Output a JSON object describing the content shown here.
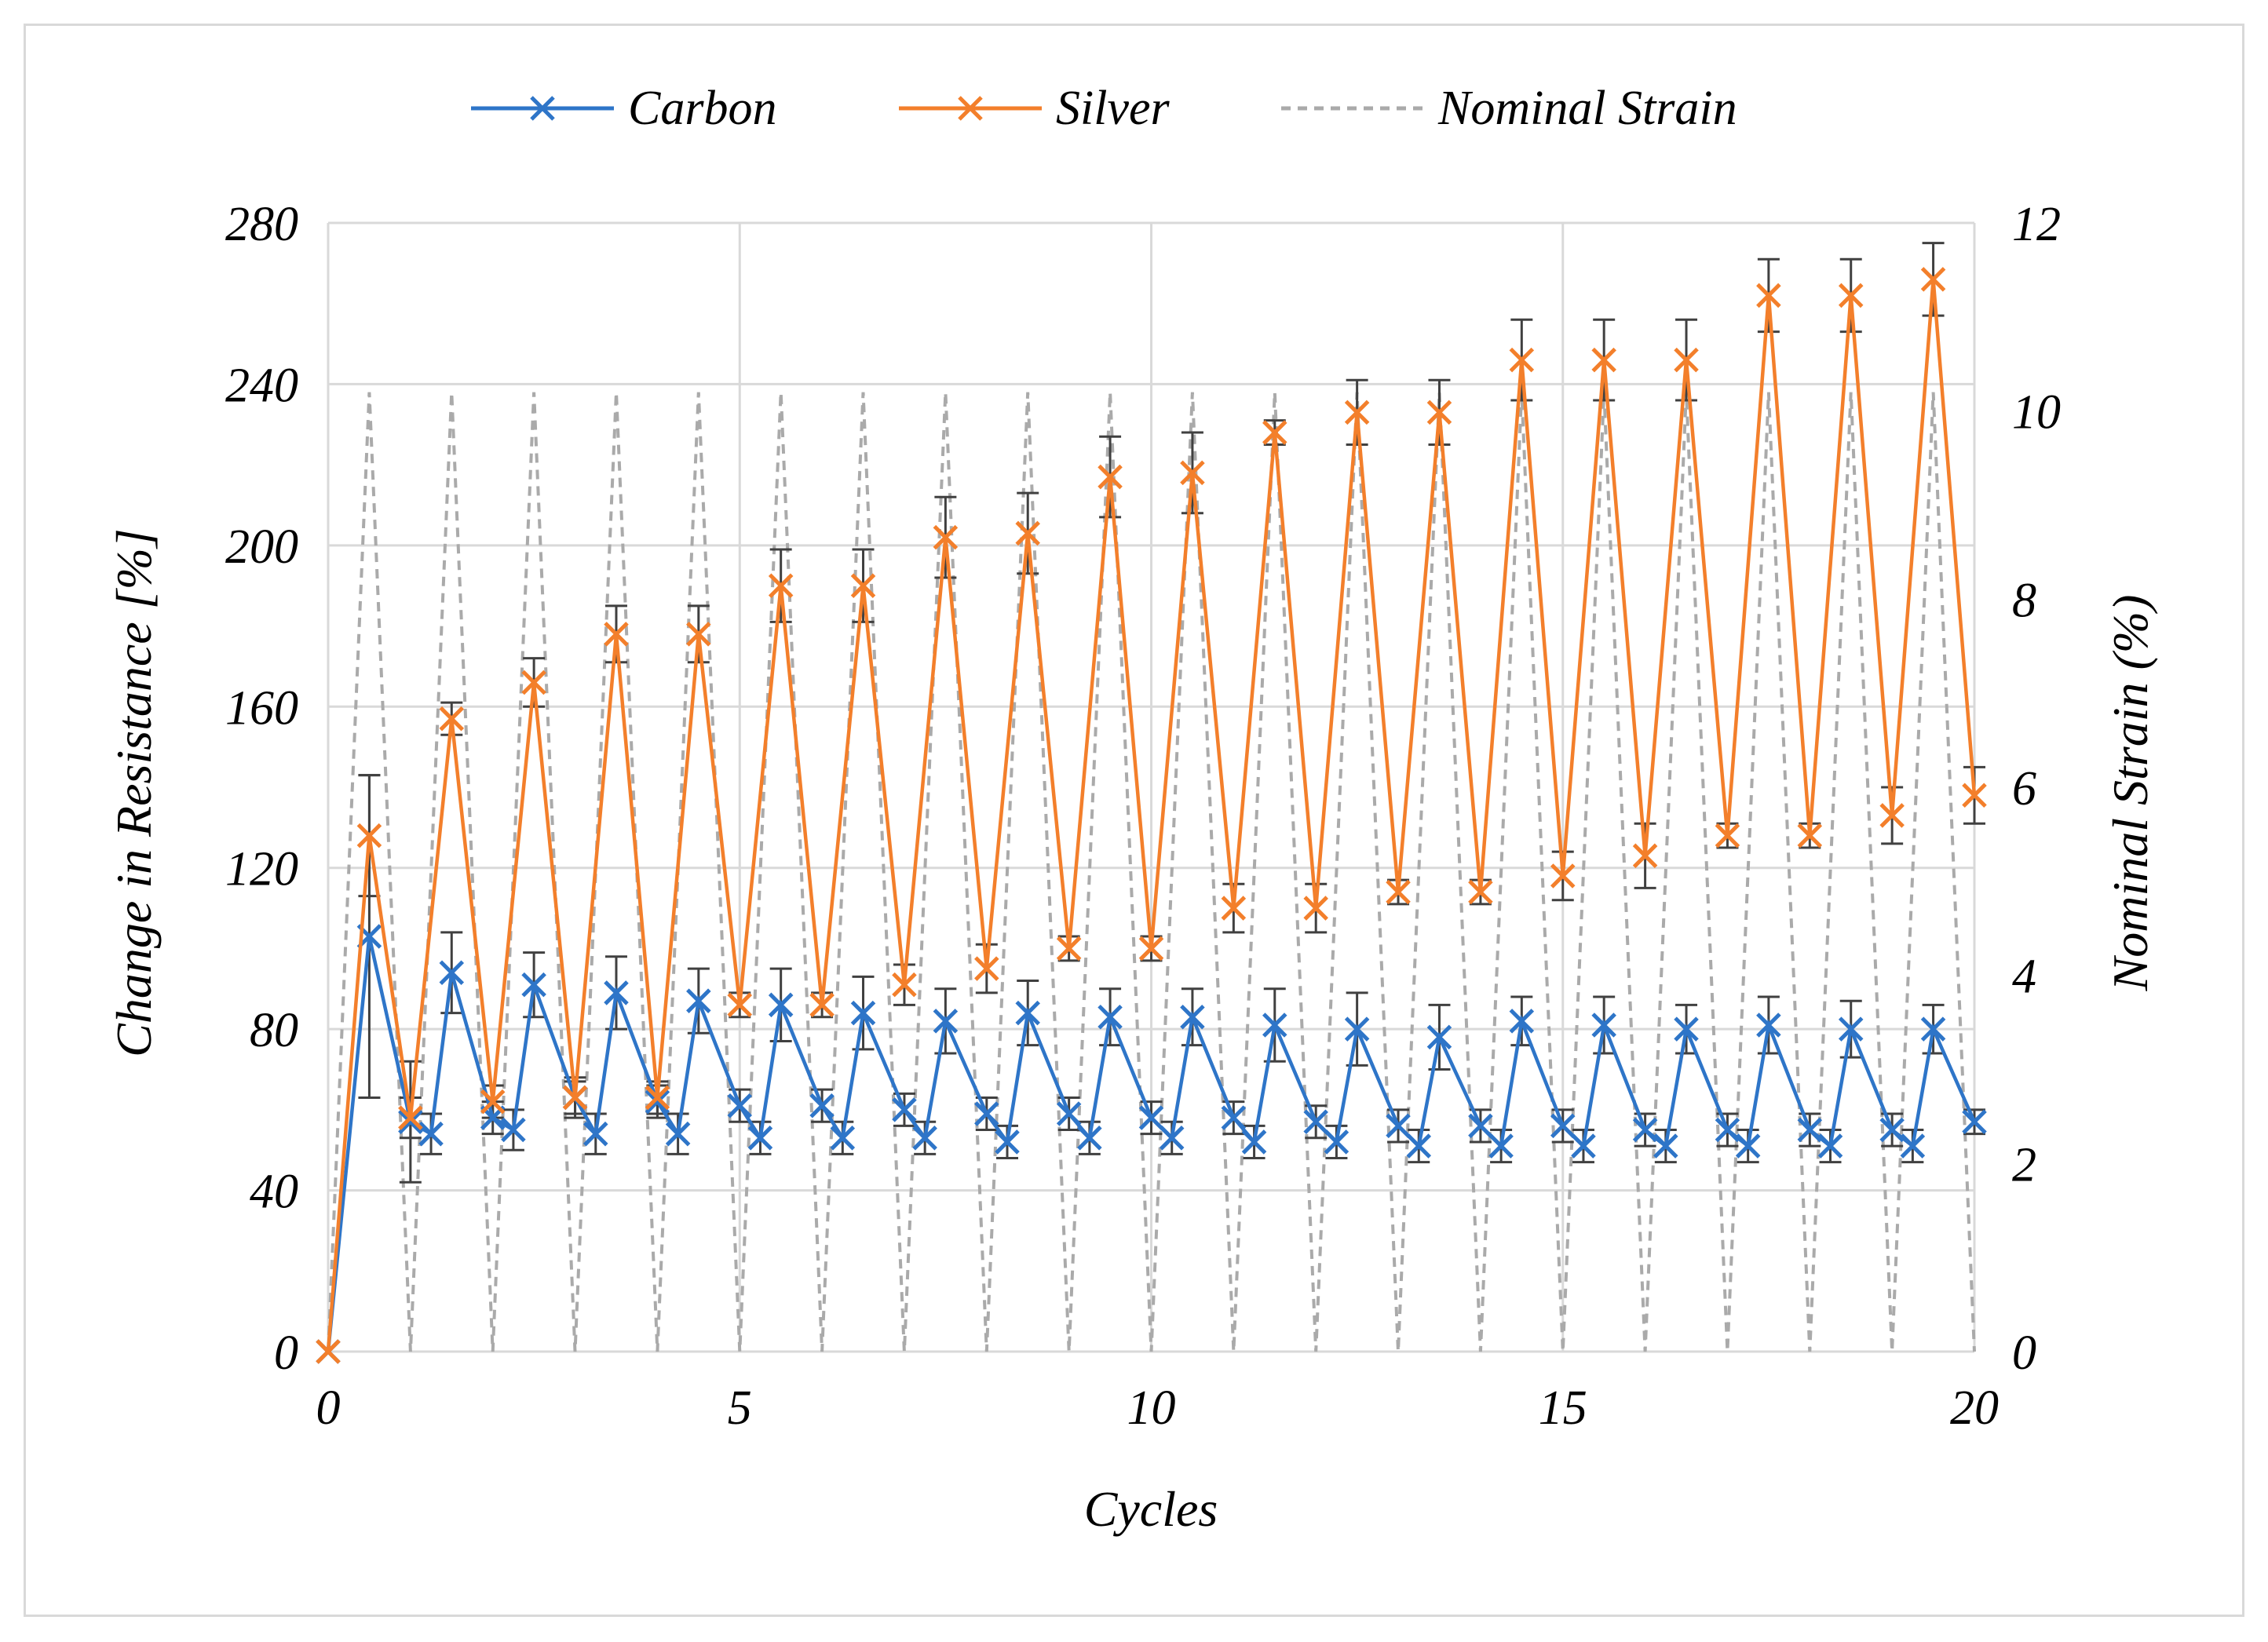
{
  "chart_data": {
    "type": "line",
    "xlabel": "Cycles",
    "ylabel": "Change in Resistance [%]",
    "y2label": "Nominal Strain (%)",
    "xlim": [
      0,
      20
    ],
    "ylim": [
      0,
      280
    ],
    "y2lim": [
      0,
      12
    ],
    "xticks": [
      "0",
      "5",
      "10",
      "15",
      "20"
    ],
    "yticks": [
      "0",
      "40",
      "80",
      "120",
      "160",
      "200",
      "240",
      "280"
    ],
    "y2ticks": [
      "0",
      "2",
      "4",
      "6",
      "8",
      "10",
      "12"
    ],
    "legend_position": "top-center",
    "grid": true,
    "series": [
      {
        "name": "Carbon",
        "color": "#2e75c8",
        "marker": "x",
        "x": [
          0,
          0.5,
          1,
          1.25,
          1.5,
          2,
          2.25,
          2.5,
          3,
          3.25,
          3.5,
          4,
          4.25,
          4.5,
          5,
          5.25,
          5.5,
          6,
          6.25,
          6.5,
          7,
          7.25,
          7.5,
          8,
          8.25,
          8.5,
          9,
          9.25,
          9.5,
          10,
          10.25,
          10.5,
          11,
          11.25,
          11.5,
          12,
          12.25,
          12.5,
          13,
          13.25,
          13.5,
          14,
          14.25,
          14.5,
          15,
          15.25,
          15.5,
          16,
          16.25,
          16.5,
          17,
          17.25,
          17.5,
          18,
          18.25,
          18.5,
          19,
          19.25,
          19.5,
          20
        ],
        "y": [
          0,
          103,
          57,
          54,
          94,
          58,
          55,
          91,
          63,
          54,
          89,
          62,
          54,
          87,
          61,
          53,
          86,
          61,
          53,
          84,
          60,
          53,
          82,
          59,
          52,
          84,
          59,
          53,
          83,
          58,
          53,
          83,
          58,
          52,
          81,
          57,
          52,
          80,
          56,
          51,
          78,
          56,
          51,
          82,
          56,
          51,
          81,
          55,
          51,
          80,
          55,
          51,
          81,
          55,
          51,
          80,
          55,
          51,
          80,
          57
        ],
        "error": [
          0,
          40,
          15,
          5,
          10,
          4,
          5,
          8,
          4,
          5,
          9,
          4,
          5,
          8,
          4,
          4,
          9,
          4,
          4,
          9,
          4,
          4,
          8,
          4,
          4,
          8,
          4,
          4,
          7,
          4,
          4,
          7,
          4,
          4,
          9,
          4,
          4,
          9,
          4,
          4,
          8,
          4,
          4,
          6,
          4,
          4,
          7,
          4,
          4,
          6,
          4,
          4,
          7,
          4,
          4,
          7,
          4,
          4,
          6,
          3
        ]
      },
      {
        "name": "Silver",
        "color": "#f37f2b",
        "marker": "x",
        "x": [
          0,
          0.5,
          1,
          1.5,
          2,
          2.5,
          3,
          3.5,
          4,
          4.5,
          5,
          5.5,
          6,
          6.5,
          7,
          7.5,
          8,
          8.5,
          9,
          9.5,
          10,
          10.5,
          11,
          11.5,
          12,
          12.5,
          13,
          13.5,
          14,
          14.5,
          15,
          15.5,
          16,
          16.5,
          17,
          17.5,
          18,
          18.5,
          19,
          19.5,
          20
        ],
        "y": [
          0,
          128,
          58,
          157,
          62,
          166,
          63,
          178,
          63,
          178,
          86,
          190,
          86,
          190,
          91,
          202,
          95,
          203,
          100,
          217,
          100,
          218,
          110,
          228,
          110,
          233,
          114,
          233,
          114,
          246,
          118,
          246,
          123,
          246,
          128,
          262,
          128,
          262,
          133,
          266,
          138
        ],
        "error": [
          0,
          15,
          5,
          4,
          4,
          6,
          5,
          7,
          4,
          7,
          3,
          9,
          3,
          9,
          5,
          10,
          6,
          10,
          3,
          10,
          3,
          10,
          6,
          3,
          6,
          8,
          3,
          8,
          3,
          10,
          6,
          10,
          8,
          10,
          3,
          9,
          3,
          9,
          7,
          9,
          7
        ]
      },
      {
        "name": "Nominal Strain",
        "color": "#aaaaaa",
        "axis": "right",
        "style": "dashed",
        "x": [
          0,
          0.5,
          1,
          1.5,
          2,
          2.5,
          3,
          3.5,
          4,
          4.5,
          5,
          5.5,
          6,
          6.5,
          7,
          7.5,
          8,
          8.5,
          9,
          9.5,
          10,
          10.5,
          11,
          11.5,
          12,
          12.5,
          13,
          13.5,
          14,
          14.5,
          15,
          15.5,
          16,
          16.5,
          17,
          17.5,
          18,
          18.5,
          19,
          19.5,
          20
        ],
        "y": [
          0,
          10.2,
          0,
          10.2,
          0,
          10.2,
          0,
          10.2,
          0,
          10.2,
          0,
          10.2,
          0,
          10.2,
          0,
          10.2,
          0,
          10.2,
          0,
          10.2,
          0,
          10.2,
          0,
          10.2,
          0,
          10.2,
          0,
          10.2,
          0,
          10.2,
          0,
          10.2,
          0,
          10.2,
          0,
          10.2,
          0,
          10.2,
          0,
          10.2,
          0
        ]
      }
    ]
  }
}
